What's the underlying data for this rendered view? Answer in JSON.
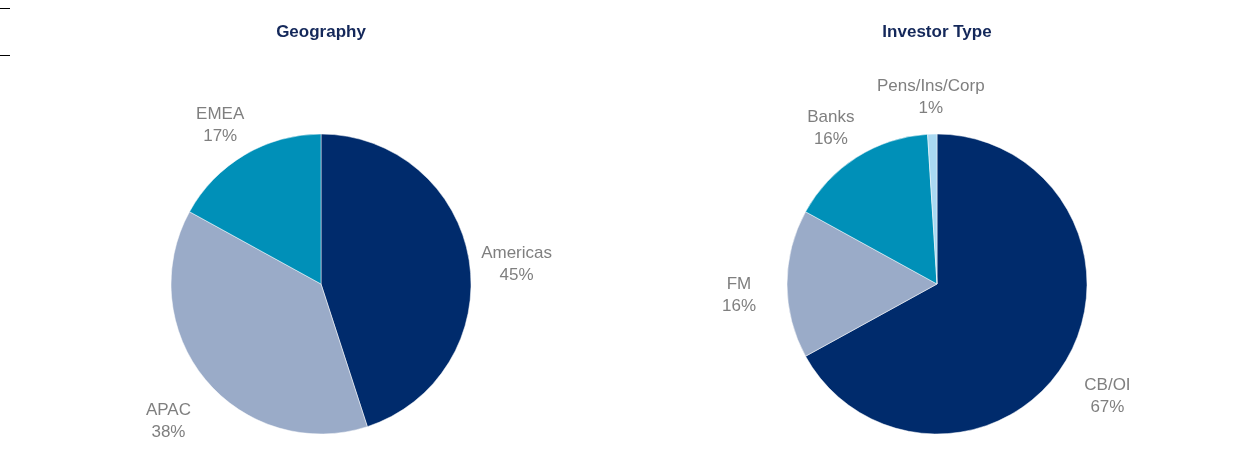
{
  "chart_data": [
    {
      "type": "pie",
      "title": "Geography",
      "categories": [
        "Americas",
        "APAC",
        "EMEA"
      ],
      "values": [
        45,
        38,
        17
      ],
      "colors": [
        "#002b6c",
        "#9aabc8",
        "#0090b8"
      ],
      "value_labels": [
        "45%",
        "38%",
        "17%"
      ]
    },
    {
      "type": "pie",
      "title": "Investor Type",
      "categories": [
        "CB/OI",
        "FM",
        "Banks",
        "Pens/Ins/Corp"
      ],
      "values": [
        67,
        16,
        16,
        1
      ],
      "colors": [
        "#002b6c",
        "#9aabc8",
        "#0090b8",
        "#a9d9f2"
      ],
      "value_labels": [
        "67%",
        "16%",
        "16%",
        "1%"
      ]
    }
  ]
}
